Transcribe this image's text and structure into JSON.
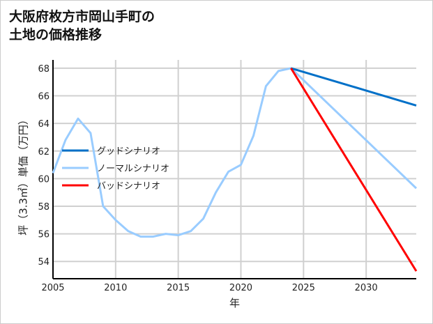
{
  "chart_data": {
    "type": "line",
    "title": [
      "大阪府枚方市岡山手町の",
      "土地の価格推移"
    ],
    "xlabel": "年",
    "ylabel": "坪（3.3㎡）単価（万円）",
    "xlim": [
      2005,
      2034
    ],
    "ylim": [
      52.75,
      68.6
    ],
    "xticks": [
      2005,
      2010,
      2015,
      2020,
      2025,
      2030
    ],
    "yticks": [
      54,
      56,
      58,
      60,
      62,
      64,
      66,
      68
    ],
    "grid": true,
    "legend_position": "center-left",
    "series": [
      {
        "name": "グッドシナリオ",
        "color": "#0070c8",
        "x": [
          2024,
          2034
        ],
        "y": [
          68.0,
          65.3
        ]
      },
      {
        "name": "ノーマルシナリオ",
        "color": "#99ccff",
        "x": [
          2005,
          2006,
          2007,
          2008,
          2009,
          2010,
          2011,
          2012,
          2013,
          2014,
          2015,
          2016,
          2017,
          2018,
          2019,
          2020,
          2021,
          2022,
          2023,
          2024,
          2034
        ],
        "y": [
          60.4,
          62.8,
          64.35,
          63.3,
          58.0,
          57.0,
          56.2,
          55.8,
          55.8,
          56.0,
          55.9,
          56.2,
          57.1,
          59.0,
          60.5,
          61.0,
          63.1,
          66.7,
          67.8,
          68.0,
          59.3
        ]
      },
      {
        "name": "バッドシナリオ",
        "color": "#ff0000",
        "x": [
          2024,
          2034
        ],
        "y": [
          68.0,
          53.3
        ]
      }
    ]
  }
}
